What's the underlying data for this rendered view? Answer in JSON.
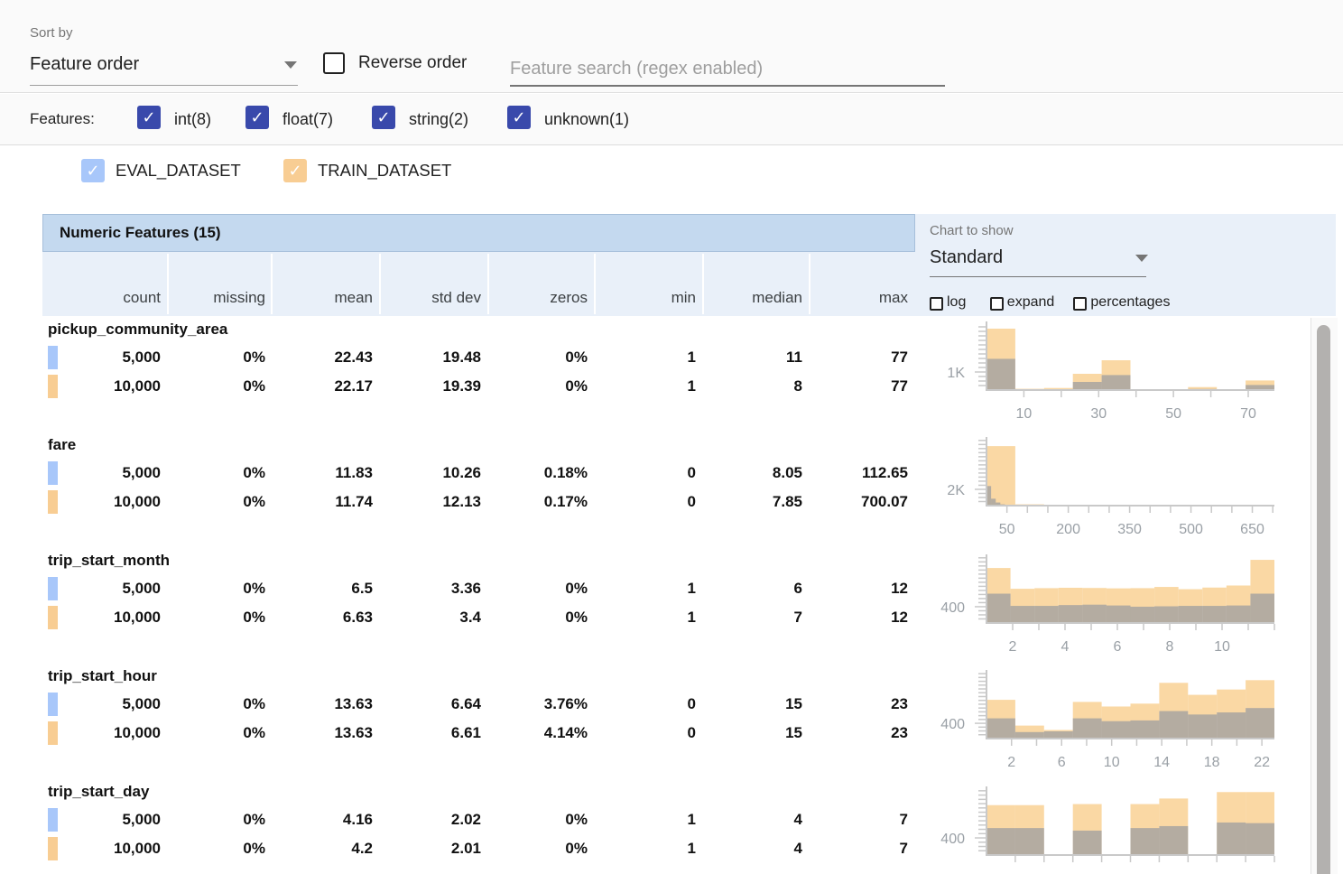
{
  "toolbar": {
    "sort_by_label": "Sort by",
    "sort_by_value": "Feature order",
    "reverse_order_label": "Reverse order",
    "search_placeholder": "Feature search (regex enabled)"
  },
  "feature_filters": {
    "label": "Features:",
    "items": [
      {
        "label": "int(8)",
        "checked": true
      },
      {
        "label": "float(7)",
        "checked": true
      },
      {
        "label": "string(2)",
        "checked": true
      },
      {
        "label": "unknown(1)",
        "checked": true
      }
    ]
  },
  "datasets": [
    {
      "label": "EVAL_DATASET",
      "color": "#a8c7fa",
      "checked": true
    },
    {
      "label": "TRAIN_DATASET",
      "color": "#f8cd93",
      "checked": true
    }
  ],
  "table": {
    "title": "Numeric Features (15)",
    "columns": [
      "count",
      "missing",
      "mean",
      "std dev",
      "zeros",
      "min",
      "median",
      "max"
    ]
  },
  "chart_controls": {
    "label": "Chart to show",
    "value": "Standard",
    "options": [
      {
        "label": "log",
        "checked": false
      },
      {
        "label": "expand",
        "checked": false
      },
      {
        "label": "percentages",
        "checked": false
      }
    ]
  },
  "features": [
    {
      "name": "pickup_community_area",
      "rows": [
        {
          "dataset": "EVAL_DATASET",
          "values": [
            "5,000",
            "0%",
            "22.43",
            "19.48",
            "0%",
            "1",
            "11",
            "77"
          ]
        },
        {
          "dataset": "TRAIN_DATASET",
          "values": [
            "10,000",
            "0%",
            "22.17",
            "19.39",
            "0%",
            "1",
            "8",
            "77"
          ]
        }
      ]
    },
    {
      "name": "fare",
      "rows": [
        {
          "dataset": "EVAL_DATASET",
          "values": [
            "5,000",
            "0%",
            "11.83",
            "10.26",
            "0.18%",
            "0",
            "8.05",
            "112.65"
          ]
        },
        {
          "dataset": "TRAIN_DATASET",
          "values": [
            "10,000",
            "0%",
            "11.74",
            "12.13",
            "0.17%",
            "0",
            "7.85",
            "700.07"
          ]
        }
      ]
    },
    {
      "name": "trip_start_month",
      "rows": [
        {
          "dataset": "EVAL_DATASET",
          "values": [
            "5,000",
            "0%",
            "6.5",
            "3.36",
            "0%",
            "1",
            "6",
            "12"
          ]
        },
        {
          "dataset": "TRAIN_DATASET",
          "values": [
            "10,000",
            "0%",
            "6.63",
            "3.4",
            "0%",
            "1",
            "7",
            "12"
          ]
        }
      ]
    },
    {
      "name": "trip_start_hour",
      "rows": [
        {
          "dataset": "EVAL_DATASET",
          "values": [
            "5,000",
            "0%",
            "13.63",
            "6.64",
            "3.76%",
            "0",
            "15",
            "23"
          ]
        },
        {
          "dataset": "TRAIN_DATASET",
          "values": [
            "10,000",
            "0%",
            "13.63",
            "6.61",
            "4.14%",
            "0",
            "15",
            "23"
          ]
        }
      ]
    },
    {
      "name": "trip_start_day",
      "rows": [
        {
          "dataset": "EVAL_DATASET",
          "values": [
            "5,000",
            "0%",
            "4.16",
            "2.02",
            "0%",
            "1",
            "4",
            "7"
          ]
        },
        {
          "dataset": "TRAIN_DATASET",
          "values": [
            "10,000",
            "0%",
            "4.2",
            "2.01",
            "0%",
            "1",
            "4",
            "7"
          ]
        }
      ]
    }
  ],
  "chart_data": [
    {
      "type": "bar",
      "feature": "pickup_community_area",
      "y_axis": {
        "label_text": "1K",
        "label_value": 1000,
        "plot_max": 3700,
        "minor_step": 250
      },
      "x_axis": {
        "min": 0,
        "max": 77,
        "minor_step": 10,
        "tick_labels": [
          {
            "v": 10,
            "t": "10"
          },
          {
            "v": 30,
            "t": "30"
          },
          {
            "v": 50,
            "t": "50"
          },
          {
            "v": 70,
            "t": "70"
          }
        ]
      },
      "series": [
        {
          "name": "TRAIN_DATASET",
          "bin_start": 0,
          "bin_width": 7.7,
          "values": [
            3400,
            70,
            115,
            900,
            1650,
            15,
            10,
            165,
            10,
            530
          ]
        },
        {
          "name": "EVAL_DATASET",
          "bin_start": 0,
          "bin_width": 7.7,
          "values": [
            1730,
            20,
            30,
            450,
            830,
            10,
            5,
            60,
            5,
            280
          ]
        }
      ]
    },
    {
      "type": "bar",
      "feature": "fare",
      "y_axis": {
        "label_text": "2K",
        "label_value": 2000,
        "plot_max": 8200,
        "minor_step": 500
      },
      "x_axis": {
        "min": 0,
        "max": 704,
        "minor_step": 50,
        "tick_labels": [
          {
            "v": 50,
            "t": "50"
          },
          {
            "v": 200,
            "t": "200"
          },
          {
            "v": 350,
            "t": "350"
          },
          {
            "v": 500,
            "t": "500"
          },
          {
            "v": 650,
            "t": "650"
          }
        ]
      },
      "series": [
        {
          "name": "TRAIN_DATASET",
          "bin_start": 0,
          "bin_width": 70.4,
          "values": [
            7300,
            160,
            30,
            15,
            10,
            5,
            5,
            5,
            5,
            10
          ]
        },
        {
          "name": "EVAL_DATASET",
          "bin_start": 0,
          "bin_width": 11.27,
          "values": [
            2400,
            850,
            380,
            160,
            90,
            50,
            30,
            20,
            15,
            10
          ]
        }
      ]
    },
    {
      "type": "bar",
      "feature": "trip_start_month",
      "y_axis": {
        "label_text": "400",
        "label_value": 400,
        "plot_max": 1640,
        "minor_step": 100
      },
      "x_axis": {
        "min": 1,
        "max": 12,
        "minor_step": 1,
        "tick_labels": [
          {
            "v": 2,
            "t": "2"
          },
          {
            "v": 4,
            "t": "4"
          },
          {
            "v": 6,
            "t": "6"
          },
          {
            "v": 8,
            "t": "8"
          },
          {
            "v": 10,
            "t": "10"
          }
        ]
      },
      "series": [
        {
          "name": "TRAIN_DATASET",
          "bin_start": 1,
          "bin_width": 0.9167,
          "values": [
            1350,
            840,
            855,
            865,
            860,
            850,
            855,
            885,
            830,
            870,
            920,
            1550
          ]
        },
        {
          "name": "EVAL_DATASET",
          "bin_start": 1,
          "bin_width": 0.9167,
          "values": [
            720,
            420,
            420,
            440,
            450,
            430,
            400,
            410,
            420,
            420,
            430,
            720
          ]
        }
      ]
    },
    {
      "type": "bar",
      "feature": "trip_start_hour",
      "y_axis": {
        "label_text": "400",
        "label_value": 400,
        "plot_max": 1750,
        "minor_step": 100
      },
      "x_axis": {
        "min": 0,
        "max": 23,
        "minor_step": 2,
        "tick_labels": [
          {
            "v": 2,
            "t": "2"
          },
          {
            "v": 6,
            "t": "6"
          },
          {
            "v": 10,
            "t": "10"
          },
          {
            "v": 14,
            "t": "14"
          },
          {
            "v": 18,
            "t": "18"
          },
          {
            "v": 22,
            "t": "22"
          }
        ]
      },
      "series": [
        {
          "name": "TRAIN_DATASET",
          "bin_start": 0,
          "bin_width": 2.3,
          "values": [
            1015,
            340,
            225,
            960,
            840,
            915,
            1460,
            1145,
            1285,
            1530
          ]
        },
        {
          "name": "EVAL_DATASET",
          "bin_start": 0,
          "bin_width": 2.3,
          "values": [
            530,
            170,
            190,
            530,
            455,
            475,
            720,
            630,
            685,
            800
          ]
        }
      ]
    },
    {
      "type": "bar",
      "feature": "trip_start_day",
      "y_axis": {
        "label_text": "400",
        "label_value": 400,
        "plot_max": 1560,
        "minor_step": 100
      },
      "x_axis": {
        "min": 1,
        "max": 7,
        "minor_step": 0.6,
        "tick_labels": []
      },
      "series": [
        {
          "name": "TRAIN_DATASET",
          "bin_start": 1,
          "bin_width": 0.6,
          "values": [
            1165,
            1165,
            0,
            1190,
            0,
            1190,
            1320,
            0,
            1470,
            1470
          ]
        },
        {
          "name": "EVAL_DATASET",
          "bin_start": 1,
          "bin_width": 0.6,
          "values": [
            630,
            630,
            0,
            570,
            0,
            630,
            675,
            0,
            760,
            745
          ]
        }
      ]
    }
  ],
  "colors": {
    "accent_indigo": "#3949ab",
    "eval_blue": "#a8c7fa",
    "train_orange": "#f8cd93",
    "bar_train": "#fad8a4",
    "bar_eval_overlay": "rgba(110,127,158,0.5)",
    "header_band": "#c4d9ef",
    "header_light": "#e9f0f9",
    "axis_line": "#c9c9c9",
    "axis_text": "#9aa0a6"
  }
}
